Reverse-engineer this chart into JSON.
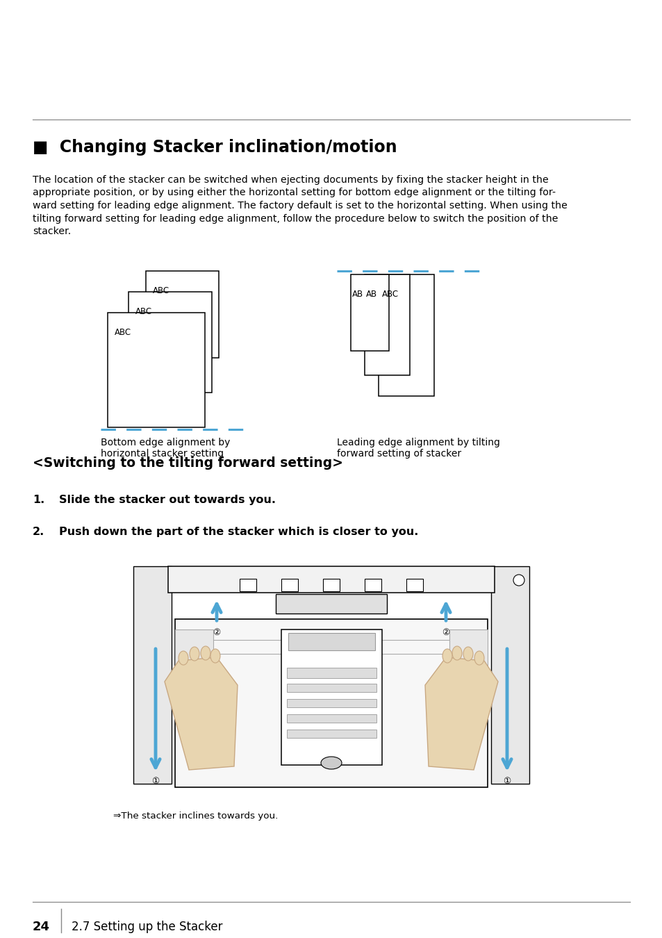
{
  "title": "■  Changing Stacker inclination/motion",
  "body_text_lines": [
    "The location of the stacker can be switched when ejecting documents by fixing the stacker height in the",
    "appropriate position, or by using either the horizontal setting for bottom edge alignment or the tilting for-",
    "ward setting for leading edge alignment. The factory default is set to the horizontal setting. When using the",
    "tilting forward setting for leading edge alignment, follow the procedure below to switch the position of the",
    "stacker."
  ],
  "section_sub": "<Switching to the tilting forward setting>",
  "step1_num": "1.",
  "step1": "Slide the stacker out towards you.",
  "step2_num": "2.",
  "step2": "Push down the part of the stacker which is closer to you.",
  "caption1": "Bottom edge alignment by\nhorizontal stacker setting",
  "caption2": "Leading edge alignment by tilting\nforward setting of stacker",
  "arrow_note": "⇒The stacker inclines towards you.",
  "footer_page": "24",
  "footer_section": "2.7 Setting up the Stacker",
  "bg_color": "#ffffff",
  "text_color": "#000000",
  "blue_color": "#4da6d4",
  "gray_color": "#888888",
  "hand_color": "#e8d5b0",
  "hand_edge": "#c8a882",
  "title_fontsize": 17,
  "body_fontsize": 10.2,
  "sub_fontsize": 13.5,
  "step_fontsize": 11.5,
  "caption_fontsize": 10,
  "footer_fontsize": 13
}
